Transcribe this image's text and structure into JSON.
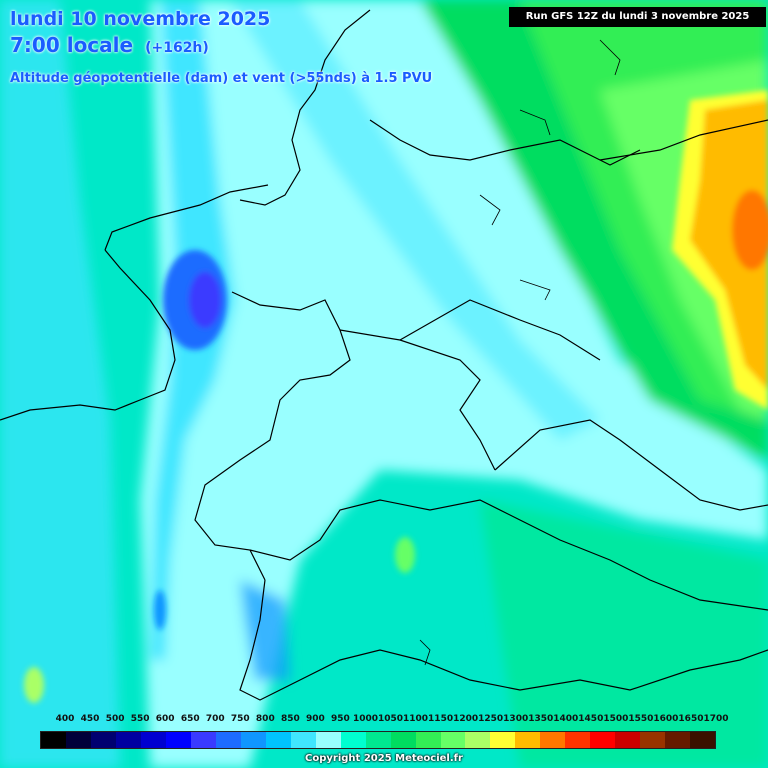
{
  "header": {
    "date_line": "lundi 10 novembre 2025",
    "time_line": "7:00 locale",
    "lead_time": "(+162h)",
    "field_line": "Altitude géopotentielle (dam) et vent (>55nds) à 1.5 PVU",
    "run_info": "Run GFS 12Z du lundi 3 novembre 2025"
  },
  "legend": {
    "labels": [
      "400",
      "450",
      "500",
      "550",
      "600",
      "650",
      "700",
      "750",
      "800",
      "850",
      "900",
      "950",
      "1000",
      "1050",
      "1100",
      "1150",
      "1200",
      "1250",
      "1300",
      "1350",
      "1400",
      "1450",
      "1500",
      "1550",
      "1600",
      "1650",
      "1700"
    ],
    "colors": [
      "#000000",
      "#00003a",
      "#000070",
      "#0000a0",
      "#0000d0",
      "#0000ff",
      "#3a3aff",
      "#1e6cff",
      "#1096ff",
      "#00c4ff",
      "#40e6ff",
      "#99ffff",
      "#00ffd0",
      "#00e890",
      "#00dd60",
      "#33ee55",
      "#66ff66",
      "#aaff66",
      "#ffff33",
      "#ffbb00",
      "#ff7700",
      "#ff3300",
      "#ff0000",
      "#cc0000",
      "#993300",
      "#661a00",
      "#3a1000"
    ]
  },
  "copyright": "Copyright 2025 Meteociel.fr",
  "colors": {
    "title": "#1a5cff",
    "land_base": "#00e8c8",
    "corridor_light": "#99ffff",
    "low_core": "#3a3aff",
    "high_core": "#ff7700",
    "borders": "#000000"
  }
}
